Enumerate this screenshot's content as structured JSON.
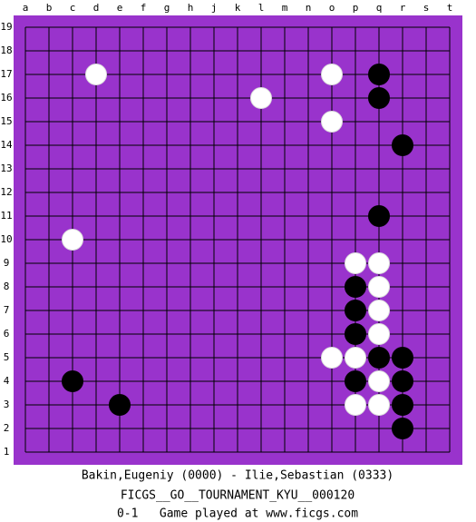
{
  "board": {
    "columns": [
      "a",
      "b",
      "c",
      "d",
      "e",
      "f",
      "g",
      "h",
      "j",
      "k",
      "l",
      "m",
      "n",
      "o",
      "p",
      "q",
      "r",
      "s",
      "t"
    ],
    "rows": [
      19,
      18,
      17,
      16,
      15,
      14,
      13,
      12,
      11,
      10,
      9,
      8,
      7,
      6,
      5,
      4,
      3,
      2,
      1
    ],
    "stones": [
      {
        "color": "white",
        "point": "d17"
      },
      {
        "color": "white",
        "point": "l16"
      },
      {
        "color": "white",
        "point": "o17"
      },
      {
        "color": "white",
        "point": "o15"
      },
      {
        "color": "white",
        "point": "c10"
      },
      {
        "color": "white",
        "point": "p9"
      },
      {
        "color": "white",
        "point": "q9"
      },
      {
        "color": "white",
        "point": "q8"
      },
      {
        "color": "white",
        "point": "q7"
      },
      {
        "color": "white",
        "point": "q6"
      },
      {
        "color": "white",
        "point": "o5"
      },
      {
        "color": "white",
        "point": "p5"
      },
      {
        "color": "white",
        "point": "q4"
      },
      {
        "color": "white",
        "point": "p3"
      },
      {
        "color": "white",
        "point": "q3"
      },
      {
        "color": "black",
        "point": "q17"
      },
      {
        "color": "black",
        "point": "q16"
      },
      {
        "color": "black",
        "point": "r14"
      },
      {
        "color": "black",
        "point": "q11"
      },
      {
        "color": "black",
        "point": "p8"
      },
      {
        "color": "black",
        "point": "p7"
      },
      {
        "color": "black",
        "point": "p6"
      },
      {
        "color": "black",
        "point": "q5"
      },
      {
        "color": "black",
        "point": "r5"
      },
      {
        "color": "black",
        "point": "p4"
      },
      {
        "color": "black",
        "point": "r4"
      },
      {
        "color": "black",
        "point": "r3"
      },
      {
        "color": "black",
        "point": "r2"
      },
      {
        "color": "black",
        "point": "c4"
      },
      {
        "color": "black",
        "point": "e3"
      }
    ]
  },
  "footer": {
    "players": "Bakin,Eugeniy (0000) - Ilie,Sebastian (0333)",
    "event": "FICGS__GO__TOURNAMENT_KYU__000120",
    "result": "0-1   Game played at www.ficgs.com"
  }
}
